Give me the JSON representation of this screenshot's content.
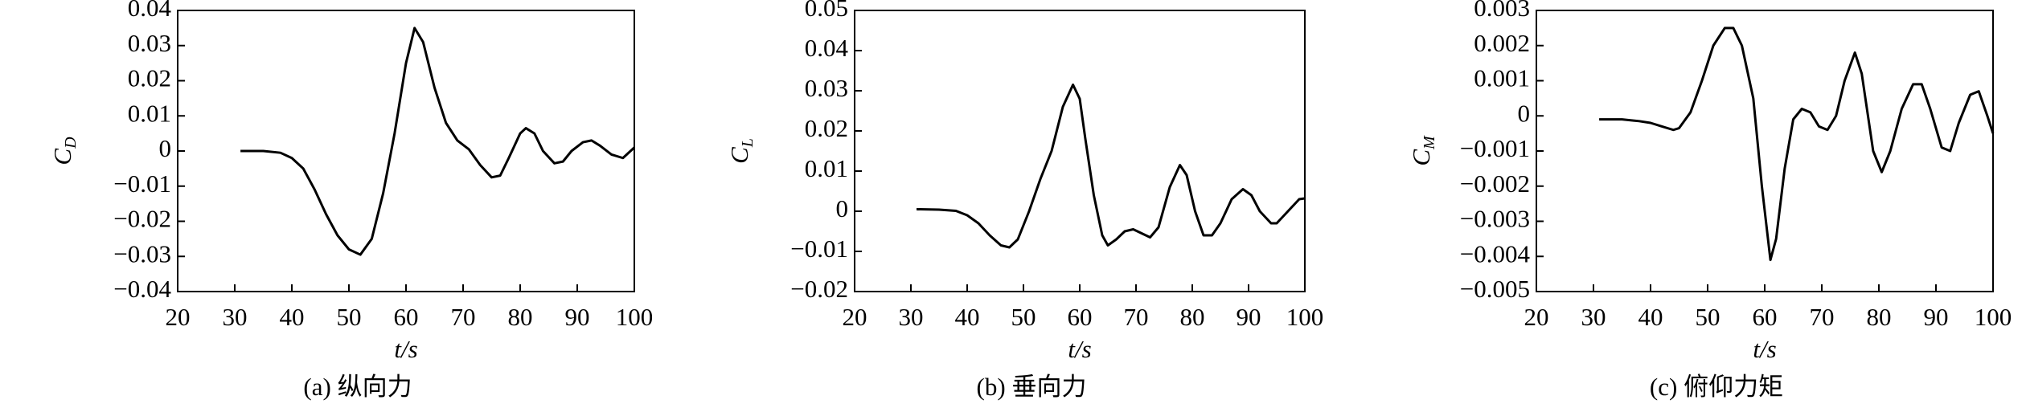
{
  "chart_data": [
    {
      "type": "line",
      "ylabel": "C",
      "ylabel_subscript": "D",
      "xlabel": "t/s",
      "caption": "(a) 纵向力",
      "color": "#000000",
      "xlim": [
        20,
        100
      ],
      "xticks": [
        20,
        30,
        40,
        50,
        60,
        70,
        80,
        90,
        100
      ],
      "ylim": [
        -0.04,
        0.04
      ],
      "yticks": [
        {
          "value": -0.04,
          "label": "−0.04"
        },
        {
          "value": -0.03,
          "label": "−0.03"
        },
        {
          "value": -0.02,
          "label": "−0.02"
        },
        {
          "value": -0.01,
          "label": "−0.01"
        },
        0,
        0.01,
        0.02,
        0.03,
        0.04
      ],
      "x": [
        31,
        35,
        38,
        40,
        42,
        44,
        46,
        48,
        50,
        52,
        54,
        56,
        58,
        60,
        61.5,
        63,
        65,
        67,
        69,
        71,
        73,
        75,
        76.5,
        78,
        80,
        81,
        82.5,
        84,
        86,
        87.5,
        89,
        91,
        92.5,
        94,
        96,
        98,
        100
      ],
      "values": [
        0,
        0,
        -0.0005,
        -0.002,
        -0.005,
        -0.011,
        -0.018,
        -0.024,
        -0.028,
        -0.0295,
        -0.025,
        -0.012,
        0.005,
        0.025,
        0.035,
        0.031,
        0.018,
        0.008,
        0.003,
        0.0005,
        -0.004,
        -0.0075,
        -0.007,
        -0.002,
        0.005,
        0.0065,
        0.005,
        0,
        -0.0035,
        -0.003,
        0,
        0.0025,
        0.003,
        0.0015,
        -0.001,
        -0.002,
        0.001
      ]
    },
    {
      "type": "line",
      "ylabel": "C",
      "ylabel_subscript": "L",
      "xlabel": "t/s",
      "caption": "(b) 垂向力",
      "color": "#000000",
      "xlim": [
        20,
        100
      ],
      "xticks": [
        20,
        30,
        40,
        50,
        60,
        70,
        80,
        90,
        100
      ],
      "ylim": [
        -0.02,
        0.05
      ],
      "yticks": [
        {
          "value": -0.02,
          "label": "−0.02"
        },
        {
          "value": -0.01,
          "label": "−0.01"
        },
        0,
        0.01,
        0.02,
        0.03,
        0.04,
        0.05
      ],
      "x": [
        31,
        35,
        38,
        40,
        42,
        44,
        46,
        47.5,
        49,
        51,
        53,
        55,
        57,
        58.8,
        60,
        61,
        62.5,
        64,
        65,
        66.5,
        68,
        69.5,
        71,
        72.5,
        74,
        76,
        77.8,
        79,
        80.5,
        82,
        83.5,
        85,
        87,
        89,
        90.5,
        92,
        94,
        95,
        97,
        99,
        100
      ],
      "values": [
        0.0005,
        0.0004,
        0.0001,
        -0.001,
        -0.003,
        -0.006,
        -0.0085,
        -0.009,
        -0.007,
        0,
        0.008,
        0.015,
        0.026,
        0.0315,
        0.028,
        0.018,
        0.004,
        -0.006,
        -0.0085,
        -0.007,
        -0.005,
        -0.0045,
        -0.0055,
        -0.0065,
        -0.004,
        0.006,
        0.0115,
        0.009,
        0,
        -0.006,
        -0.006,
        -0.003,
        0.003,
        0.0055,
        0.004,
        0,
        -0.003,
        -0.003,
        0,
        0.003,
        0.0032
      ]
    },
    {
      "type": "line",
      "ylabel": "C",
      "ylabel_subscript": "M",
      "xlabel": "t/s",
      "caption": "(c) 俯仰力矩",
      "color": "#000000",
      "xlim": [
        20,
        100
      ],
      "xticks": [
        20,
        30,
        40,
        50,
        60,
        70,
        80,
        90,
        100
      ],
      "ylim": [
        -0.005,
        0.003
      ],
      "yticks": [
        {
          "value": -0.005,
          "label": "−0.005"
        },
        {
          "value": -0.004,
          "label": "−0.004"
        },
        {
          "value": -0.003,
          "label": "−0.003"
        },
        {
          "value": -0.002,
          "label": "−0.002"
        },
        {
          "value": -0.001,
          "label": "−0.001"
        },
        0,
        0.001,
        0.002,
        0.003
      ],
      "x": [
        31,
        35,
        38,
        40,
        42,
        44,
        45,
        47,
        49,
        51,
        53,
        54.5,
        56,
        58,
        59.5,
        61,
        62,
        63.5,
        65,
        66.5,
        68,
        69.5,
        71,
        72.5,
        74,
        75.8,
        77,
        79,
        80.5,
        82,
        84,
        86,
        87.5,
        89,
        91,
        92.5,
        94,
        96,
        97.5,
        99,
        100
      ],
      "values": [
        -0.0001,
        -0.0001,
        -0.00015,
        -0.0002,
        -0.0003,
        -0.0004,
        -0.00035,
        0.0001,
        0.001,
        0.002,
        0.0025,
        0.0025,
        0.002,
        0.0005,
        -0.002,
        -0.0041,
        -0.0035,
        -0.0015,
        -0.0001,
        0.0002,
        0.0001,
        -0.0003,
        -0.0004,
        0,
        0.001,
        0.0018,
        0.0012,
        -0.001,
        -0.0016,
        -0.001,
        0.0002,
        0.0009,
        0.0009,
        0.0002,
        -0.0009,
        -0.001,
        -0.0002,
        0.0006,
        0.0007,
        0,
        -0.0005
      ]
    }
  ]
}
